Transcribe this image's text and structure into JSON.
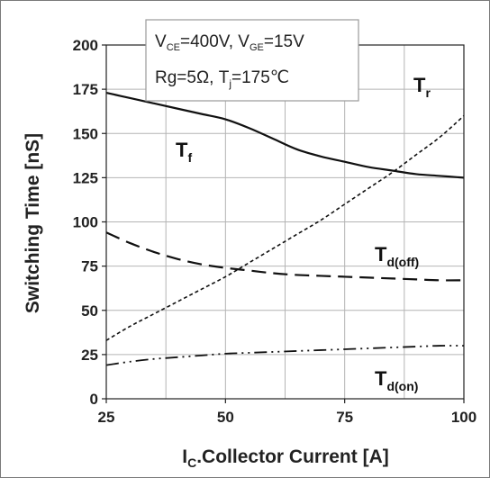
{
  "chart_data": {
    "type": "line",
    "xlabel": "I",
    "xlabel_sub": "C",
    "xlabel_rest": ".Collector Current [A]",
    "ylabel": "Switching Time [nS]",
    "xlim": [
      25,
      100
    ],
    "ylim": [
      0,
      200
    ],
    "x_ticks": [
      25,
      50,
      75,
      100
    ],
    "y_ticks": [
      0,
      25,
      50,
      75,
      100,
      125,
      150,
      175,
      200
    ],
    "grid": true,
    "annotation": {
      "line1": {
        "a": "V",
        "a_sub": "CE",
        "b": "=400V, V",
        "b_sub": "GE",
        "c": "=15V"
      },
      "line2": {
        "a": "Rg=5Ω, T",
        "a_sub": "j",
        "b": "=175℃"
      }
    },
    "series": [
      {
        "name": "T",
        "sub": "f",
        "style": "solid",
        "x": [
          25,
          30,
          35,
          40,
          45,
          50,
          55,
          60,
          65,
          70,
          75,
          80,
          85,
          90,
          95,
          100
        ],
        "y": [
          173,
          170,
          167,
          164,
          161,
          158,
          153,
          147,
          141,
          137,
          134,
          131,
          129,
          127,
          126,
          125
        ]
      },
      {
        "name": "T",
        "sub": "r",
        "style": "dotted",
        "x": [
          25,
          30,
          35,
          40,
          45,
          50,
          55,
          60,
          65,
          70,
          75,
          80,
          85,
          90,
          95,
          100
        ],
        "y": [
          33,
          41,
          48,
          55,
          62,
          69,
          77,
          85,
          93,
          101,
          110,
          119,
          128,
          138,
          148,
          160
        ]
      },
      {
        "name": "T",
        "sub": "d(off)",
        "style": "dashed",
        "x": [
          25,
          30,
          35,
          40,
          45,
          50,
          55,
          60,
          65,
          70,
          75,
          80,
          85,
          90,
          95,
          100
        ],
        "y": [
          94,
          88,
          83,
          79,
          76,
          74,
          72.5,
          71,
          70,
          69.5,
          69,
          68.5,
          68,
          67.5,
          67,
          67
        ]
      },
      {
        "name": "T",
        "sub": "d(on)",
        "style": "dashdot",
        "x": [
          25,
          30,
          35,
          40,
          45,
          50,
          55,
          60,
          65,
          70,
          75,
          80,
          85,
          90,
          95,
          100
        ],
        "y": [
          19,
          21,
          22.5,
          23.5,
          24.5,
          25.5,
          26,
          26.5,
          27,
          27.5,
          28,
          28.5,
          29,
          29.5,
          30,
          30
        ]
      }
    ]
  }
}
